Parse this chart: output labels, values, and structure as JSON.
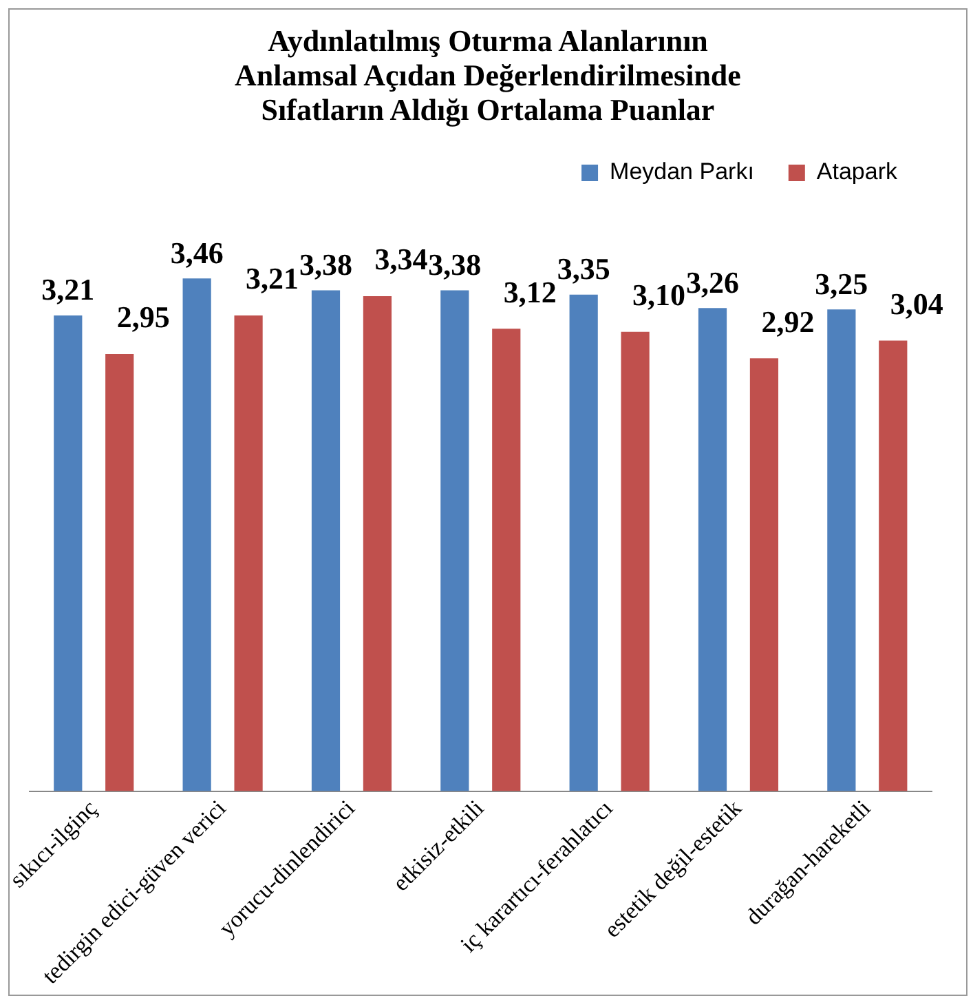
{
  "chart_data": {
    "type": "bar",
    "title": "Aydınlatılmış Oturma Alanlarının Anlamsal Açıdan Değerlendirilmesinde Sıfatların Aldığı Ortalama Puanlar",
    "categories": [
      "sıkıcı-ilginç",
      "tedirgin edici-güven verici",
      "yorucu-dinlendirici",
      "etkisiz-etkili",
      "iç karartıcı-ferahlatıcı",
      "estetik değil-estetik",
      "durağan-hareketli"
    ],
    "series": [
      {
        "name": "Meydan Parkı",
        "color": "#4f81bd",
        "values": [
          3.21,
          3.46,
          3.38,
          3.38,
          3.35,
          3.26,
          3.25
        ],
        "value_labels": [
          "3,21",
          "3,46",
          "3,38",
          "3,38",
          "3,35",
          "3,26",
          "3,25"
        ]
      },
      {
        "name": "Atapark",
        "color": "#c0504d",
        "values": [
          2.95,
          3.21,
          3.34,
          3.12,
          3.1,
          2.92,
          3.04
        ],
        "value_labels": [
          "2,95",
          "3,21",
          "3,34",
          "3,12",
          "3,10",
          "2,92",
          "3,04"
        ]
      }
    ],
    "tick_labels": "x",
    "grid": false,
    "legend": "top right"
  }
}
